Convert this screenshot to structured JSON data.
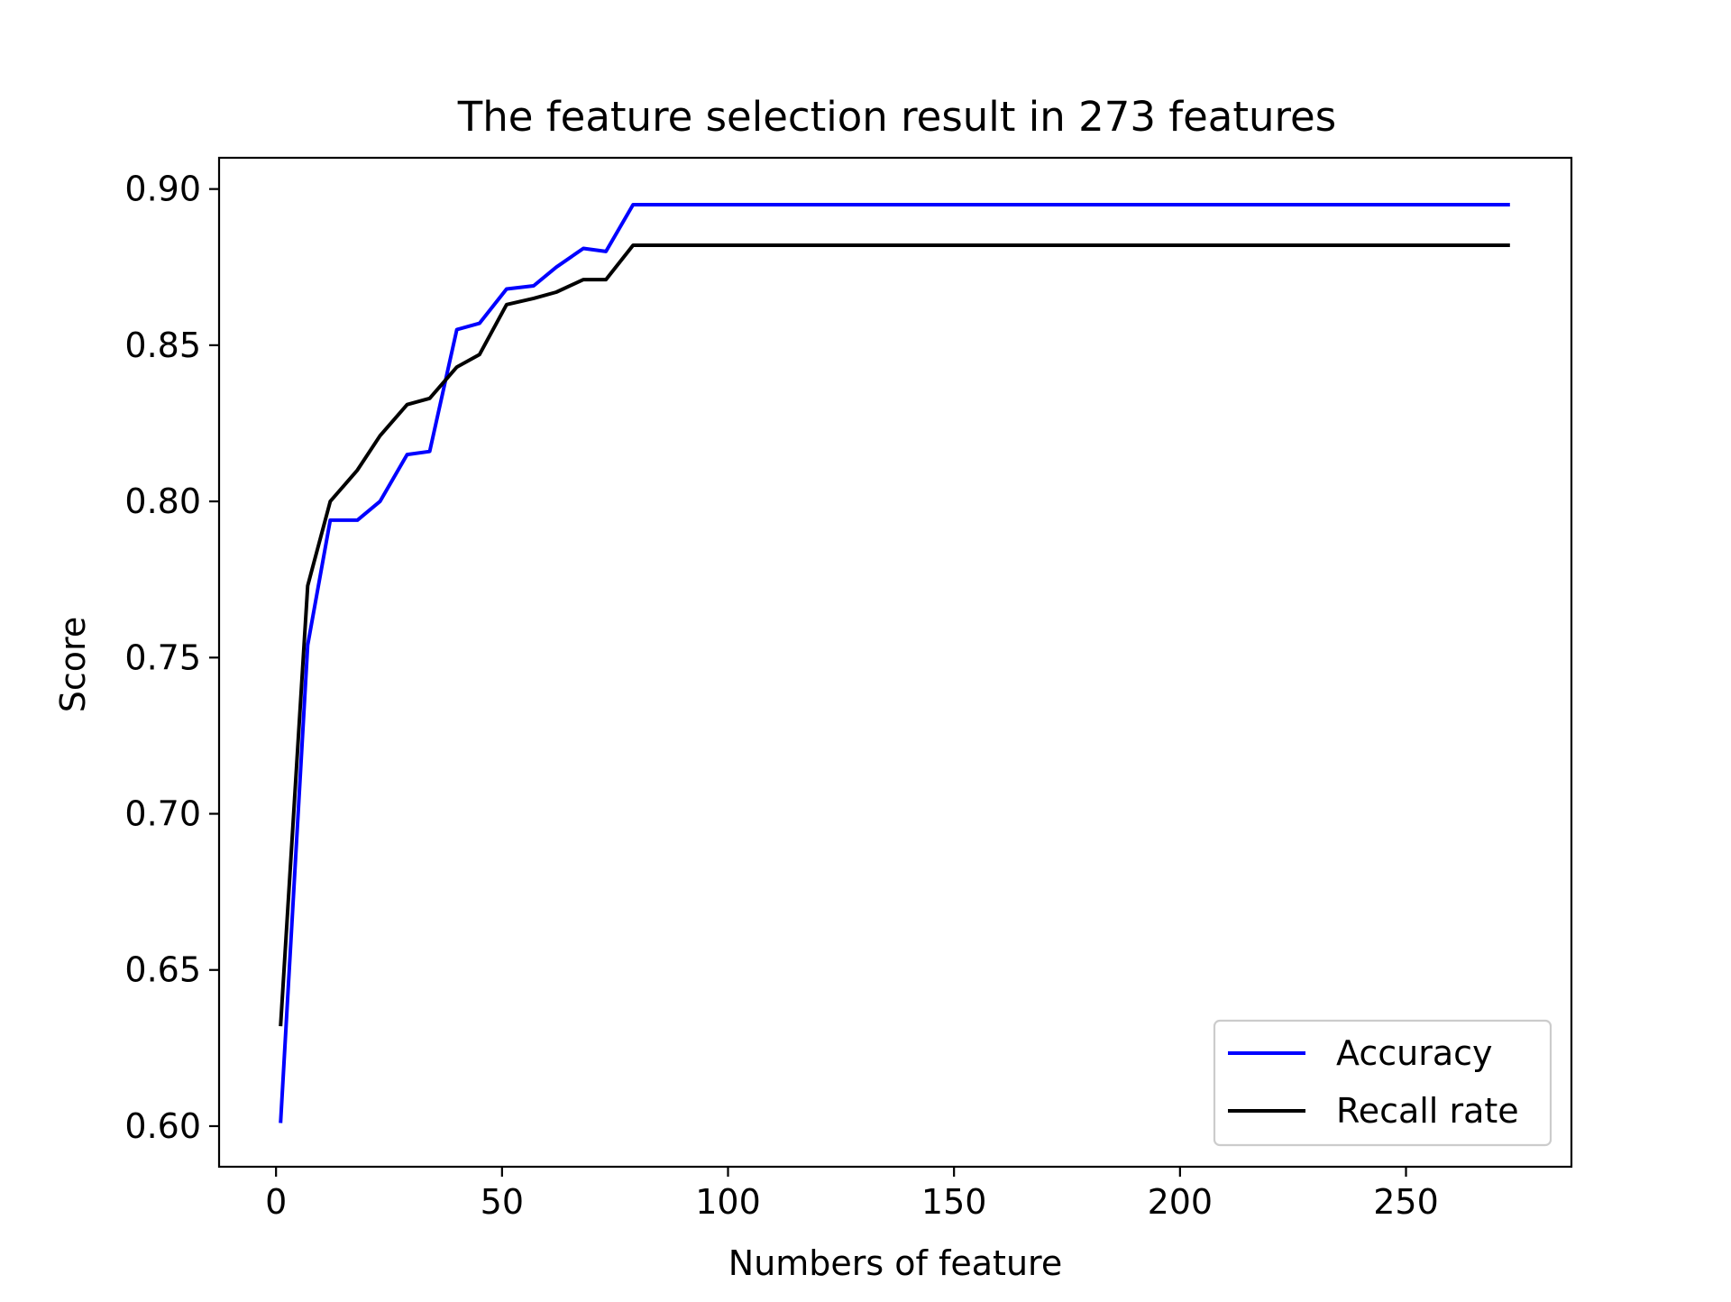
{
  "chart_data": {
    "type": "line",
    "title": "The feature selection result in 273 features",
    "xlabel": "Numbers of feature",
    "ylabel": "Score",
    "xlim": [
      -12.6,
      286.6
    ],
    "ylim": [
      0.587,
      0.91
    ],
    "xticks": [
      0,
      50,
      100,
      150,
      200,
      250
    ],
    "xtick_labels": [
      "0",
      "50",
      "100",
      "150",
      "200",
      "250"
    ],
    "yticks": [
      0.6,
      0.65,
      0.7,
      0.75,
      0.8,
      0.85,
      0.9
    ],
    "ytick_labels": [
      "0.60",
      "0.65",
      "0.70",
      "0.75",
      "0.80",
      "0.85",
      "0.90"
    ],
    "grid": false,
    "legend_position": "bottom-right",
    "series": [
      {
        "name": "Accuracy",
        "color": "#0000ff",
        "x": [
          1,
          7,
          12,
          18,
          23,
          29,
          34,
          40,
          45,
          51,
          57,
          62,
          68,
          73,
          79,
          273
        ],
        "y": [
          0.601,
          0.754,
          0.794,
          0.794,
          0.8,
          0.815,
          0.816,
          0.855,
          0.857,
          0.868,
          0.869,
          0.875,
          0.881,
          0.88,
          0.895,
          0.895
        ]
      },
      {
        "name": "Recall rate",
        "color": "#000000",
        "x": [
          1,
          7,
          12,
          18,
          23,
          29,
          34,
          40,
          45,
          51,
          57,
          62,
          68,
          73,
          79,
          273
        ],
        "y": [
          0.632,
          0.773,
          0.8,
          0.81,
          0.821,
          0.831,
          0.833,
          0.843,
          0.847,
          0.863,
          0.865,
          0.867,
          0.871,
          0.871,
          0.882,
          0.882
        ]
      }
    ]
  }
}
